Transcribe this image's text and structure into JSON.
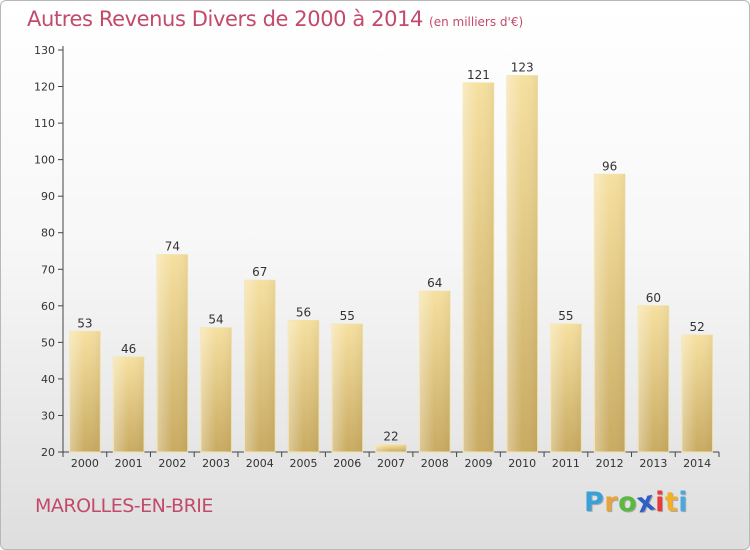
{
  "chart_data": {
    "type": "bar",
    "title": "Autres Revenus Divers de 2000 à 2014",
    "subtitle": "(en milliers d'€)",
    "categories": [
      "2000",
      "2001",
      "2002",
      "2003",
      "2004",
      "2005",
      "2006",
      "2007",
      "2008",
      "2009",
      "2010",
      "2011",
      "2012",
      "2013",
      "2014"
    ],
    "values": [
      53,
      46,
      74,
      54,
      67,
      56,
      55,
      22,
      64,
      121,
      123,
      55,
      96,
      60,
      52
    ],
    "ylim": [
      20,
      130
    ],
    "yticks": [
      20,
      30,
      40,
      50,
      60,
      70,
      80,
      90,
      100,
      110,
      120,
      130
    ],
    "xlabel": "",
    "ylabel": "",
    "grid": false,
    "bar_color": "#e6c97d"
  },
  "footer": {
    "commune": "MAROLLES-EN-BRIE",
    "logo_letters": [
      "P",
      "r",
      "o",
      "x",
      "i",
      "t",
      "i"
    ],
    "logo_colors": [
      "#3aa0d8",
      "#e8a33a",
      "#5bb840",
      "#2f5fc4",
      "#e83a3a",
      "#f0b02a",
      "#4aa8e0"
    ]
  },
  "colors": {
    "title": "#c24a6a",
    "axis": "#444444"
  }
}
